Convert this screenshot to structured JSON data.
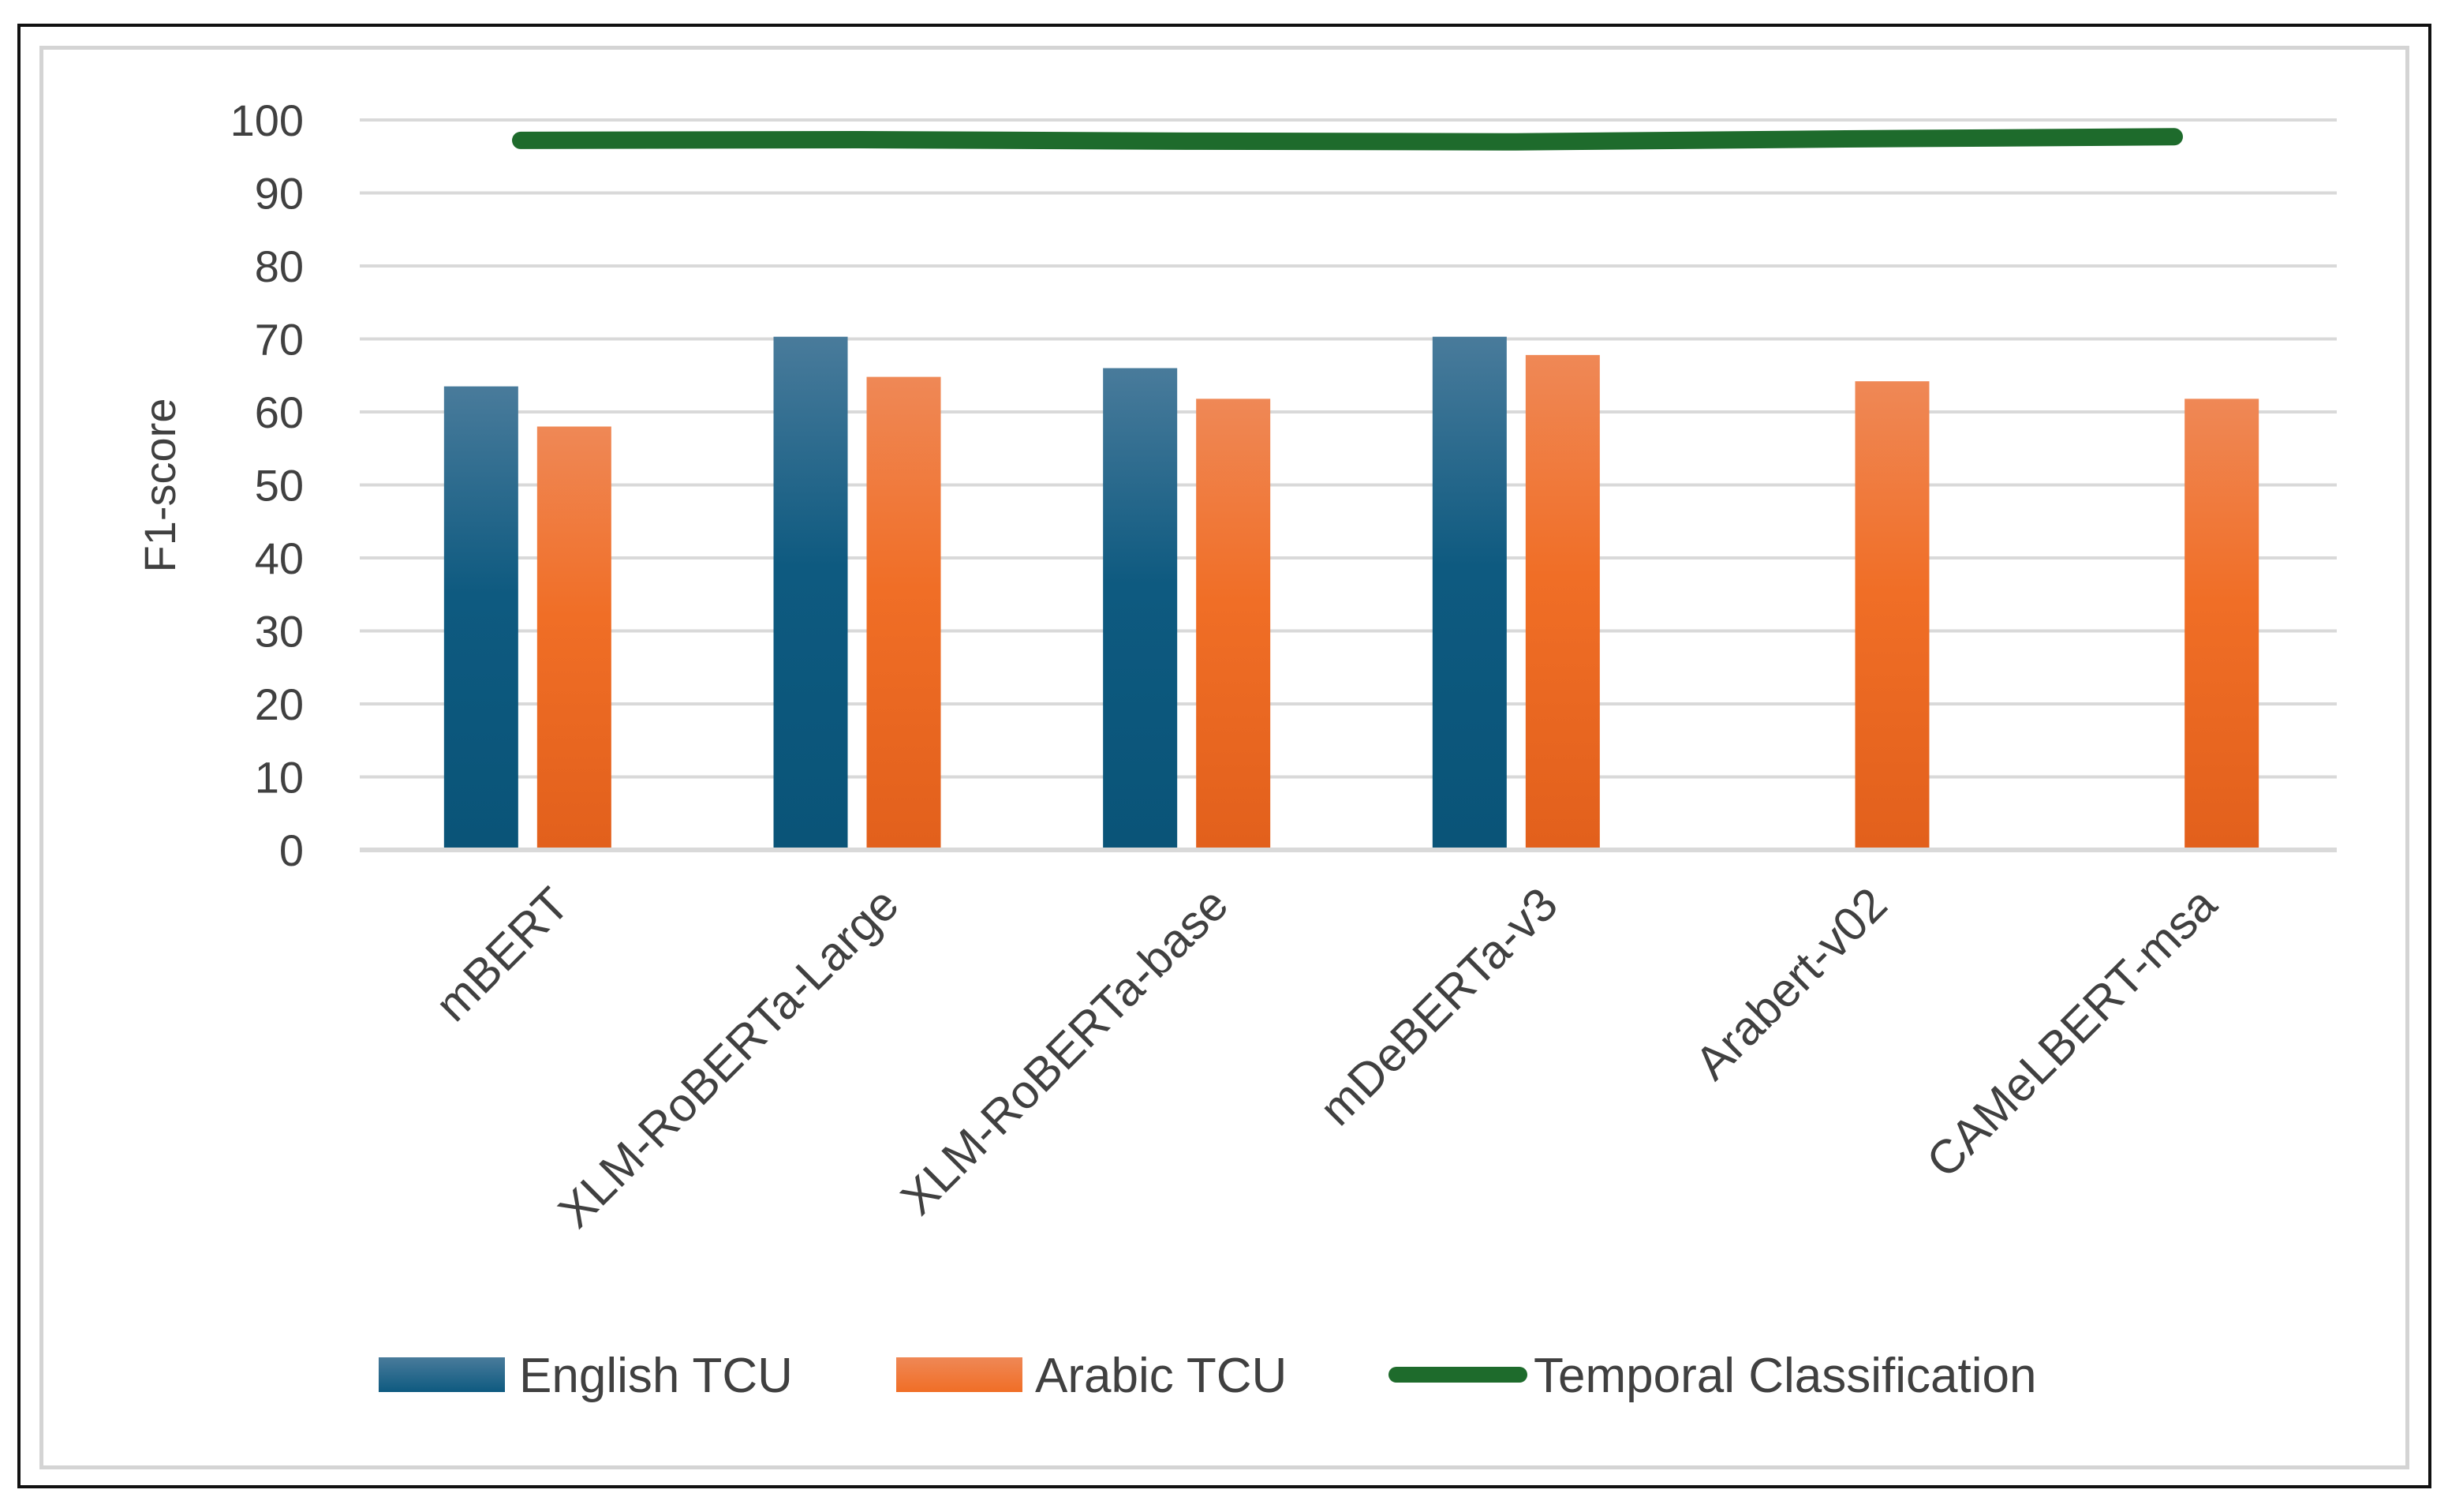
{
  "chart_data": {
    "type": "bar",
    "ylabel": "F1-score",
    "xlabel": "",
    "title": "",
    "ylim": [
      0,
      100
    ],
    "yticks": [
      0,
      10,
      20,
      30,
      40,
      50,
      60,
      70,
      80,
      90,
      100
    ],
    "grid": true,
    "legend_position": "bottom",
    "categories": [
      "mBERT",
      "XLM-RoBERTa-Large",
      "XLM-RoBERTa-base",
      "mDeBERTa-v3",
      "Arabert-v02",
      "CAMeLBERT-msa"
    ],
    "series": [
      {
        "name": "English TCU",
        "kind": "bar",
        "color": "#0e5a80",
        "values": [
          63.5,
          70.3,
          66,
          70.3,
          null,
          null
        ]
      },
      {
        "name": "Arabic TCU",
        "kind": "bar",
        "color": "#ee6a24",
        "values": [
          58,
          64.8,
          61.8,
          67.8,
          64.2,
          61.8
        ]
      },
      {
        "name": "Temporal Classification",
        "kind": "line",
        "color": "#1e6b2c",
        "values": [
          97.2,
          97.3,
          97.1,
          97,
          97.4,
          97.7
        ]
      }
    ]
  }
}
